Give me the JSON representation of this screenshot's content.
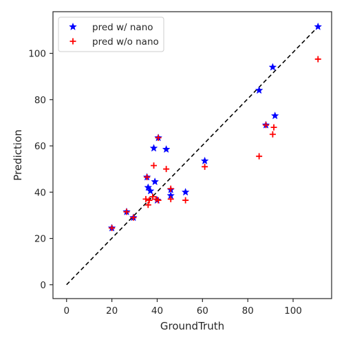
{
  "chart_data": {
    "type": "scatter",
    "xlabel": "GroundTruth",
    "ylabel": "Prediction",
    "xlim": [
      -6,
      117
    ],
    "ylim": [
      -6,
      118
    ],
    "xticks": [
      0,
      20,
      40,
      60,
      80,
      100
    ],
    "yticks": [
      0,
      20,
      40,
      60,
      80,
      100
    ],
    "grid": false,
    "legend_position": "upper-left",
    "reference_line": {
      "style": "dashed",
      "color": "#000000",
      "from": [
        0,
        0
      ],
      "to": [
        111,
        111.5
      ]
    },
    "series": [
      {
        "name": "pred w/ nano",
        "marker": "star",
        "color": "#0000ff",
        "points": [
          [
            20,
            24.5
          ],
          [
            26.5,
            31.5
          ],
          [
            29.5,
            29
          ],
          [
            35.5,
            46.5
          ],
          [
            36,
            42
          ],
          [
            37,
            40.5
          ],
          [
            38.5,
            59
          ],
          [
            39,
            44.5
          ],
          [
            40,
            36.5
          ],
          [
            40.5,
            63.5
          ],
          [
            44,
            58.5
          ],
          [
            46,
            38.5
          ],
          [
            46,
            41
          ],
          [
            52.5,
            40
          ],
          [
            61,
            53.5
          ],
          [
            85,
            84
          ],
          [
            88,
            69
          ],
          [
            91,
            94
          ],
          [
            92,
            73
          ],
          [
            111,
            111.5
          ]
        ]
      },
      {
        "name": "pred w/o nano",
        "marker": "plus",
        "color": "#ff0000",
        "points": [
          [
            20,
            24.5
          ],
          [
            26.5,
            31.5
          ],
          [
            29.5,
            29
          ],
          [
            35,
            37
          ],
          [
            35.5,
            46.5
          ],
          [
            36,
            34.5
          ],
          [
            36.5,
            36.5
          ],
          [
            38,
            38
          ],
          [
            38.5,
            51.5
          ],
          [
            39.5,
            37
          ],
          [
            40.5,
            36.5
          ],
          [
            40.5,
            63.5
          ],
          [
            44,
            50
          ],
          [
            46,
            37
          ],
          [
            46,
            41.5
          ],
          [
            52.5,
            36.5
          ],
          [
            61,
            51
          ],
          [
            85,
            55.5
          ],
          [
            88,
            69
          ],
          [
            91,
            65
          ],
          [
            91.5,
            68
          ],
          [
            111,
            97.5
          ]
        ]
      }
    ]
  }
}
